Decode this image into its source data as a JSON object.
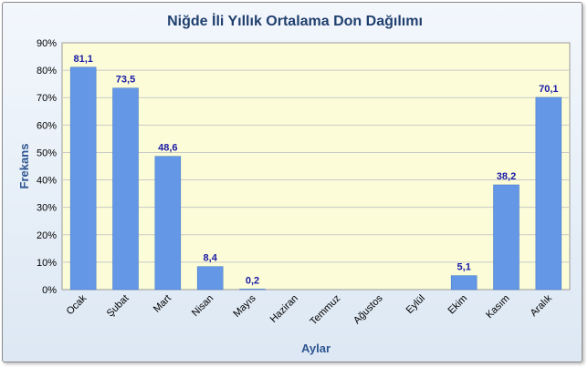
{
  "chart_data": {
    "type": "bar",
    "title": "Niğde İli Yıllık Ortalama Don Dağılımı",
    "xlabel": "Aylar",
    "ylabel": "Frekans",
    "categories": [
      "Ocak",
      "Şubat",
      "Mart",
      "Nisan",
      "Mayıs",
      "Haziran",
      "Temmuz",
      "Ağustos",
      "Eylül",
      "Ekim",
      "Kasım",
      "Aralık"
    ],
    "values": [
      81.1,
      73.5,
      48.6,
      8.4,
      0.2,
      0,
      0,
      0,
      0,
      5.1,
      38.2,
      70.1
    ],
    "data_labels": [
      "81,1",
      "73,5",
      "48,6",
      "8,4",
      "0,2",
      "",
      "",
      "",
      "",
      "5,1",
      "38,2",
      "70,1"
    ],
    "yticks": [
      "0%",
      "10%",
      "20%",
      "30%",
      "40%",
      "50%",
      "60%",
      "70%",
      "80%",
      "90%"
    ],
    "ylim": [
      0,
      90
    ],
    "grid": true,
    "legend": "none",
    "colors": {
      "bar": "#6497e6",
      "bar_edge": "#3f73c4",
      "plot_bg": "#fcfdd8",
      "title": "#1f3f6e",
      "axis_label": "#2e5590",
      "data_label": "#1a1aa6",
      "grid": "#c9c9c9"
    }
  }
}
